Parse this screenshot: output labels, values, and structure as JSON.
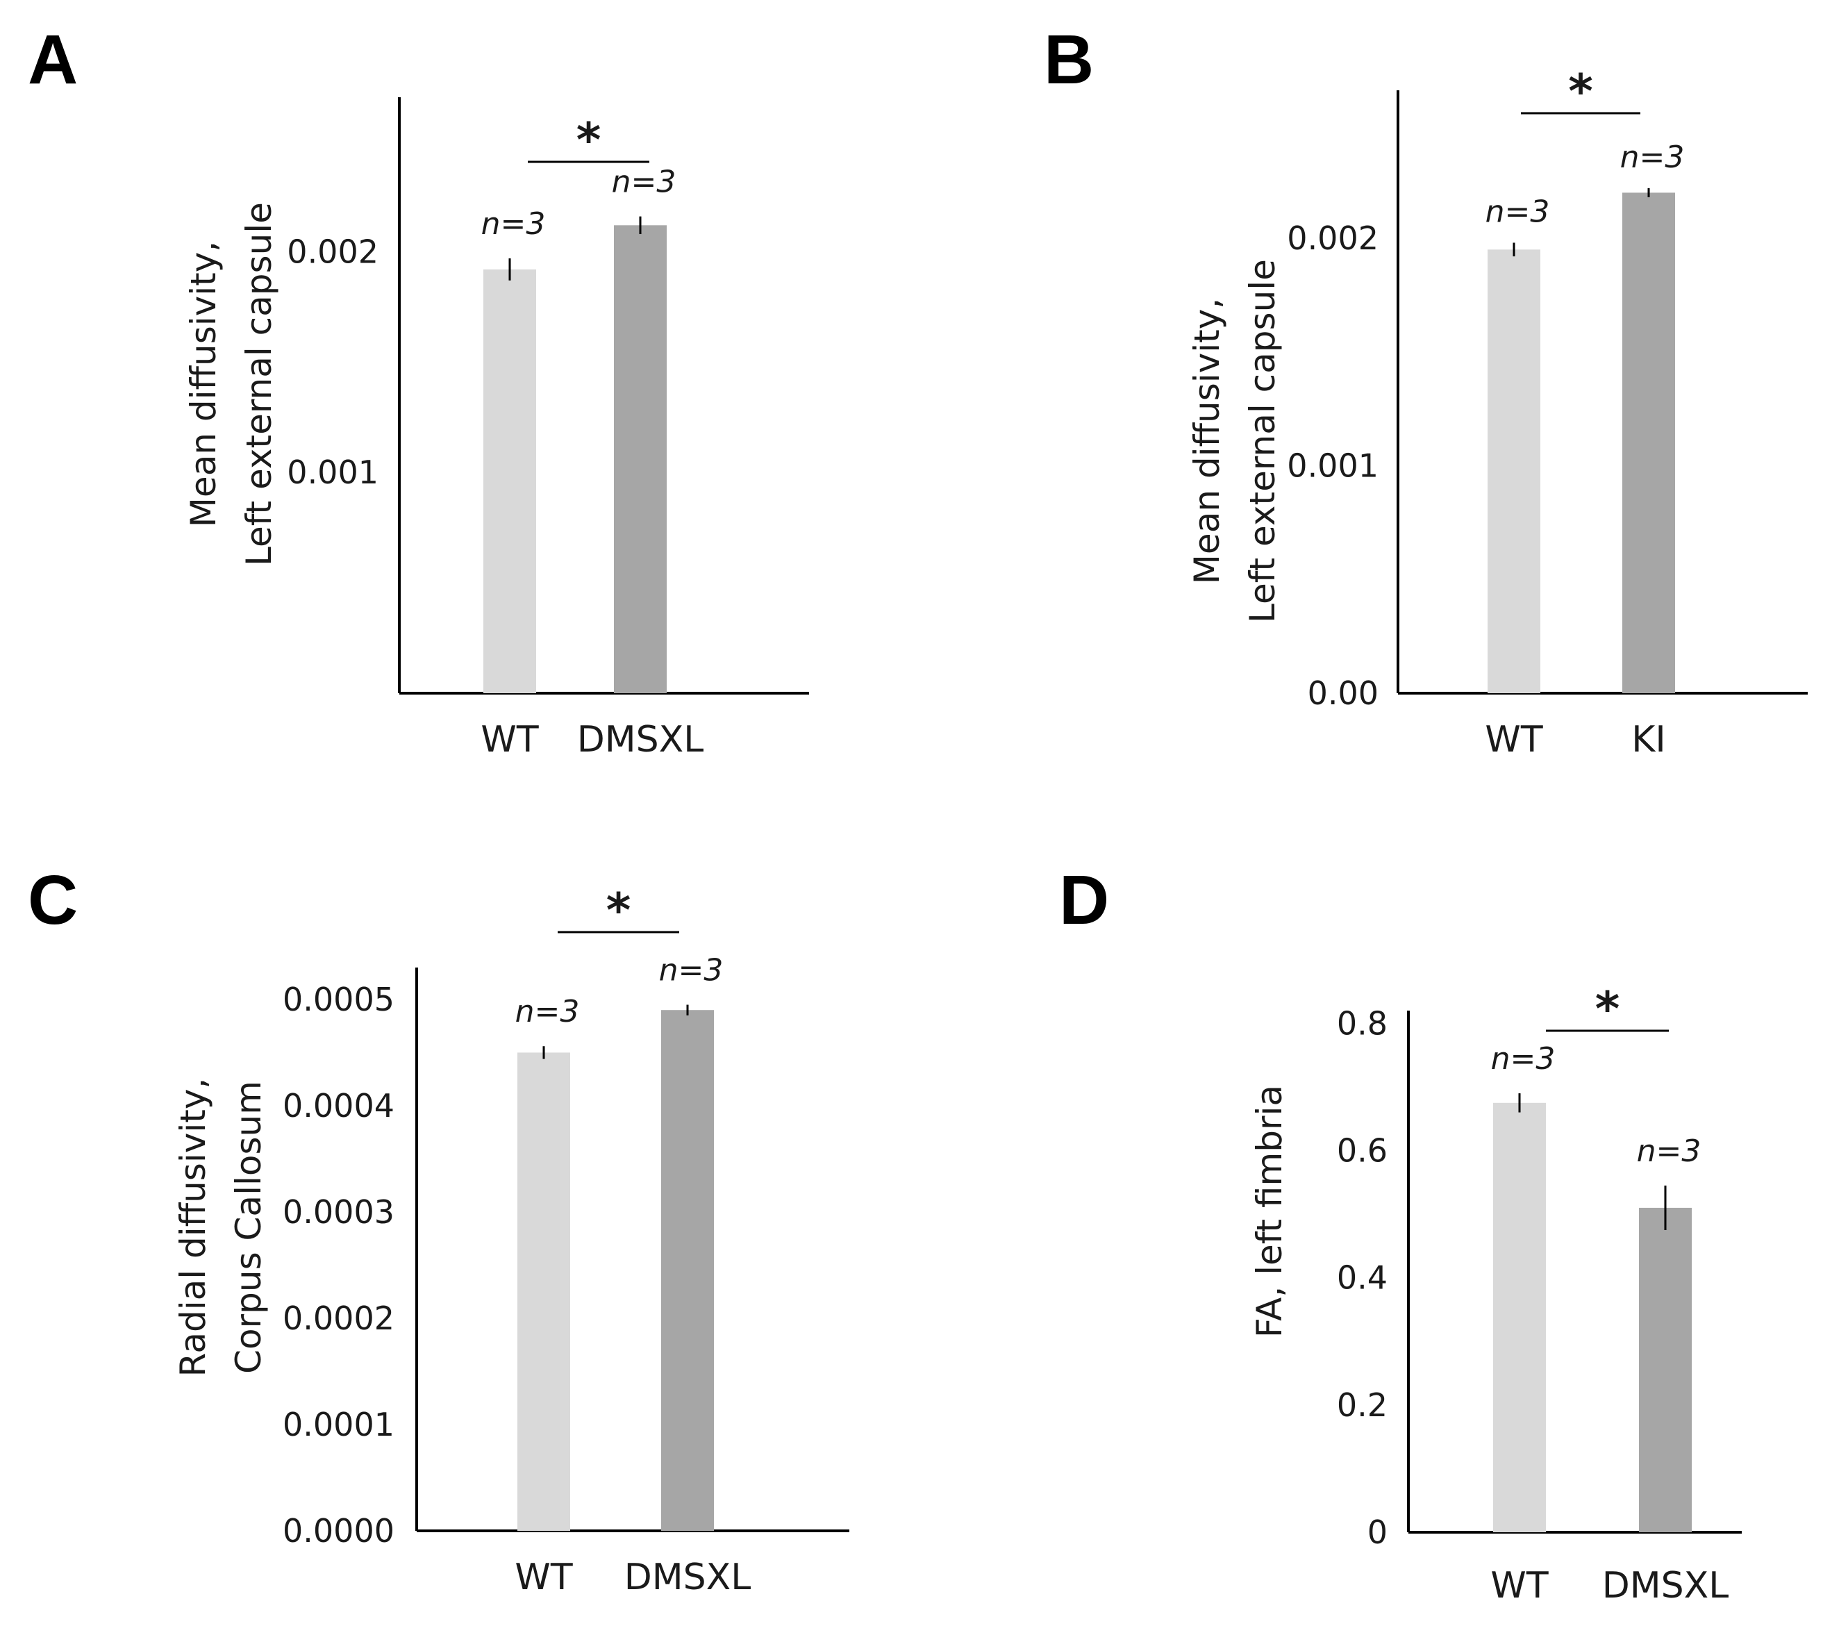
{
  "chart_data": [
    {
      "panel": "A",
      "type": "bar",
      "title": "",
      "ylabel": [
        "Mean diffusivity,",
        "Left external capsule"
      ],
      "categories": [
        "WT",
        "DMSXL"
      ],
      "values": [
        0.00192,
        0.00212
      ],
      "errors": [
        5e-05,
        4e-05
      ],
      "colors": [
        "#d9d9d9",
        "#a6a6a6"
      ],
      "n_labels": [
        "n=3",
        "n=3"
      ],
      "ylim": [
        0,
        0.0027
      ],
      "yticks": [
        0.001,
        0.002
      ],
      "ytick_labels": [
        "0.001",
        "0.002"
      ],
      "significance": "*"
    },
    {
      "panel": "B",
      "type": "bar",
      "title": "",
      "ylabel": [
        "Mean diffusivity,",
        "Left external capsule"
      ],
      "categories": [
        "WT",
        "KI"
      ],
      "values": [
        0.00195,
        0.0022
      ],
      "errors": [
        3e-05,
        2e-05
      ],
      "colors": [
        "#d9d9d9",
        "#a6a6a6"
      ],
      "n_labels": [
        "n=3",
        "n=3"
      ],
      "ylim": [
        0,
        0.00265
      ],
      "yticks": [
        0,
        0.001,
        0.002
      ],
      "ytick_labels": [
        "0.00",
        "0.001",
        "0.002"
      ],
      "significance": "*"
    },
    {
      "panel": "C",
      "type": "bar",
      "title": "",
      "ylabel": [
        "Radial diffusivity,",
        "Corpus Callosum"
      ],
      "categories": [
        "WT",
        "DMSXL"
      ],
      "values": [
        0.00045,
        0.00049
      ],
      "errors": [
        6e-06,
        5e-06
      ],
      "colors": [
        "#d9d9d9",
        "#a6a6a6"
      ],
      "n_labels": [
        "n=3",
        "n=3"
      ],
      "ylim": [
        0,
        0.00053
      ],
      "yticks": [
        0,
        0.0001,
        0.0002,
        0.0003,
        0.0004,
        0.0005
      ],
      "ytick_labels": [
        "0.0000",
        "0.0001",
        "0.0002",
        "0.0003",
        "0.0004",
        "0.0005"
      ],
      "significance": "*"
    },
    {
      "panel": "D",
      "type": "bar",
      "title": "",
      "ylabel": [
        "FA, left fimbria"
      ],
      "categories": [
        "WT",
        "DMSXL"
      ],
      "values": [
        0.675,
        0.51
      ],
      "errors": [
        0.015,
        0.035
      ],
      "colors": [
        "#d9d9d9",
        "#a6a6a6"
      ],
      "n_labels": [
        "n=3",
        "n=3"
      ],
      "ylim": [
        0,
        0.82
      ],
      "yticks": [
        0,
        0.2,
        0.4,
        0.6,
        0.8
      ],
      "ytick_labels": [
        "0",
        "0.2",
        "0.4",
        "0.6",
        "0.8"
      ],
      "significance": "*"
    }
  ]
}
